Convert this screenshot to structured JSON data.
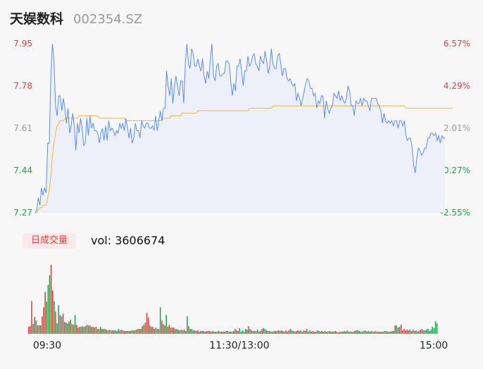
{
  "header": {
    "name": "天娱数科",
    "code": "002354.SZ"
  },
  "volume_panel": {
    "label": "日成交量",
    "vol_prefix": "vol: ",
    "vol_value": "3606674"
  },
  "colors": {
    "up": "#e23d3d",
    "down": "#1aa34a",
    "neutral": "#999999",
    "price_line": "#5b8def",
    "avg_line": "#f2b63a",
    "area_fill": "#eef0f8"
  },
  "chart_data": [
    {
      "type": "line",
      "title": "",
      "y_ticks_left": [
        "7.95",
        "7.78",
        "7.61",
        "7.44",
        "7.27"
      ],
      "y_ticks_right": [
        "6.57%",
        "4.29%",
        "2.01%",
        "-0.27%",
        "-2.55%"
      ],
      "ylim": [
        7.27,
        7.95
      ],
      "x_ticks": [
        "09:30",
        "11:30/13:00",
        "15:00"
      ],
      "series": [
        {
          "name": "",
          "values": [
            7.27,
            7.28,
            7.33,
            7.3,
            7.37,
            7.34,
            7.37,
            7.35,
            7.55,
            7.55,
            7.82,
            7.95,
            7.88,
            7.7,
            7.66,
            7.74,
            7.74,
            7.68,
            7.73,
            7.69,
            7.63,
            7.69,
            7.59,
            7.62,
            7.67,
            7.62,
            7.52,
            7.63,
            7.59,
            7.65,
            7.61,
            7.54,
            7.55,
            7.65,
            7.58,
            7.66,
            7.61,
            7.63,
            7.6,
            7.6,
            7.59,
            7.55,
            7.59,
            7.61,
            7.56,
            7.62,
            7.56,
            7.64,
            7.6,
            7.61,
            7.6,
            7.58,
            7.6,
            7.59,
            7.63,
            7.61,
            7.63,
            7.6,
            7.65,
            7.61,
            7.57,
            7.61,
            7.55,
            7.57,
            7.63,
            7.6,
            7.6,
            7.57,
            7.64,
            7.62,
            7.61,
            7.63,
            7.63,
            7.61,
            7.61,
            7.62,
            7.6,
            7.66,
            7.6,
            7.64,
            7.68,
            7.64,
            7.69,
            7.69,
            7.84,
            7.78,
            7.74,
            7.81,
            7.71,
            7.78,
            7.82,
            7.78,
            7.74,
            7.8,
            7.8,
            7.71,
            7.88,
            7.95,
            7.87,
            7.85,
            7.93,
            7.91,
            7.86,
            7.86,
            7.89,
            7.86,
            7.84,
            7.89,
            7.82,
            7.79,
            7.84,
            7.81,
            7.89,
            7.95,
            7.82,
            7.8,
            7.86,
            7.87,
            7.82,
            7.82,
            7.83,
            7.83,
            7.88,
            7.88,
            7.87,
            7.8,
            7.74,
            7.79,
            7.76,
            7.86,
            7.86,
            7.89,
            7.84,
            7.78,
            7.84,
            7.84,
            7.9,
            7.86,
            7.87,
            7.9,
            7.91,
            7.87,
            7.86,
            7.84,
            7.9,
            7.88,
            7.87,
            7.92,
            7.88,
            7.83,
            7.86,
            7.93,
            7.87,
            7.85,
            7.85,
            7.9,
            7.91,
            7.87,
            7.82,
            7.85,
            7.85,
            7.81,
            7.8,
            7.81,
            7.79,
            7.78,
            7.79,
            7.72,
            7.75,
            7.73,
            7.7,
            7.73,
            7.76,
            7.79,
            7.81,
            7.8,
            7.77,
            7.77,
            7.74,
            7.75,
            7.69,
            7.72,
            7.71,
            7.74,
            7.74,
            7.65,
            7.72,
            7.69,
            7.67,
            7.69,
            7.7,
            7.75,
            7.74,
            7.73,
            7.76,
            7.72,
            7.74,
            7.72,
            7.71,
            7.73,
            7.78,
            7.76,
            7.7,
            7.7,
            7.66,
            7.72,
            7.71,
            7.71,
            7.73,
            7.7,
            7.73,
            7.72,
            7.72,
            7.7,
            7.68,
            7.73,
            7.73,
            7.73,
            7.73,
            7.71,
            7.7,
            7.68,
            7.63,
            7.67,
            7.64,
            7.63,
            7.64,
            7.63,
            7.64,
            7.62,
            7.64,
            7.64,
            7.61,
            7.64,
            7.64,
            7.62,
            7.64,
            7.58,
            7.56,
            7.57,
            7.57,
            7.53,
            7.46,
            7.43,
            7.49,
            7.53,
            7.52,
            7.5,
            7.51,
            7.53,
            7.53,
            7.57,
            7.57,
            7.59,
            7.59,
            7.58,
            7.59,
            7.56,
            7.58,
            7.55,
            7.58,
            7.57,
            7.57
          ]
        },
        {
          "name": "",
          "values": [
            7.27,
            7.27,
            7.28,
            7.29,
            7.29,
            7.3,
            7.3,
            7.3,
            7.33,
            7.36,
            7.42,
            7.5,
            7.55,
            7.59,
            7.62,
            7.63,
            7.64,
            7.64,
            7.64,
            7.65,
            7.65,
            7.65,
            7.65,
            7.65,
            7.65,
            7.65,
            7.65,
            7.65,
            7.66,
            7.66,
            7.66,
            7.66,
            7.66,
            7.66,
            7.66,
            7.66,
            7.66,
            7.66,
            7.66,
            7.66,
            7.66,
            7.65,
            7.65,
            7.65,
            7.65,
            7.65,
            7.65,
            7.65,
            7.65,
            7.65,
            7.65,
            7.65,
            7.65,
            7.65,
            7.65,
            7.65,
            7.65,
            7.65,
            7.64,
            7.64,
            7.64,
            7.64,
            7.64,
            7.64,
            7.64,
            7.64,
            7.64,
            7.64,
            7.64,
            7.64,
            7.64,
            7.64,
            7.64,
            7.64,
            7.64,
            7.64,
            7.64,
            7.64,
            7.64,
            7.64,
            7.64,
            7.64,
            7.65,
            7.65,
            7.65,
            7.65,
            7.65,
            7.66,
            7.66,
            7.66,
            7.66,
            7.66,
            7.66,
            7.66,
            7.67,
            7.67,
            7.67,
            7.67,
            7.67,
            7.67,
            7.67,
            7.67,
            7.67,
            7.67,
            7.68,
            7.68,
            7.68,
            7.68,
            7.68,
            7.68,
            7.68,
            7.68,
            7.68,
            7.68,
            7.68,
            7.68,
            7.68,
            7.68,
            7.68,
            7.68,
            7.68,
            7.68,
            7.68,
            7.68,
            7.68,
            7.68,
            7.68,
            7.68,
            7.68,
            7.68,
            7.68,
            7.68,
            7.68,
            7.68,
            7.68,
            7.68,
            7.68,
            7.69,
            7.69,
            7.69,
            7.69,
            7.69,
            7.69,
            7.69,
            7.69,
            7.69,
            7.69,
            7.69,
            7.69,
            7.69,
            7.69,
            7.69,
            7.7,
            7.7,
            7.7,
            7.7,
            7.7,
            7.7,
            7.7,
            7.7,
            7.7,
            7.7,
            7.7,
            7.7,
            7.7,
            7.7,
            7.7,
            7.7,
            7.7,
            7.7,
            7.7,
            7.7,
            7.7,
            7.7,
            7.7,
            7.7,
            7.7,
            7.7,
            7.7,
            7.7,
            7.7,
            7.7,
            7.7,
            7.7,
            7.7,
            7.7,
            7.7,
            7.7,
            7.7,
            7.7,
            7.7,
            7.7,
            7.7,
            7.7,
            7.7,
            7.7,
            7.7,
            7.7,
            7.7,
            7.7,
            7.7,
            7.7,
            7.7,
            7.7,
            7.7,
            7.7,
            7.7,
            7.7,
            7.7,
            7.7,
            7.7,
            7.7,
            7.7,
            7.7,
            7.7,
            7.7,
            7.7,
            7.7,
            7.7,
            7.7,
            7.7,
            7.7,
            7.7,
            7.7,
            7.7,
            7.7,
            7.7,
            7.7,
            7.7,
            7.7,
            7.7,
            7.7,
            7.7,
            7.7,
            7.7,
            7.7,
            7.7,
            7.69,
            7.69,
            7.69,
            7.69,
            7.69,
            7.69,
            7.69,
            7.69,
            7.69,
            7.69,
            7.69,
            7.69,
            7.69,
            7.69,
            7.69,
            7.69,
            7.69,
            7.69,
            7.69,
            7.69,
            7.69,
            7.69,
            7.69,
            7.69,
            7.69,
            7.69,
            7.69,
            7.69,
            7.69,
            7.69,
            7.69
          ]
        }
      ]
    },
    {
      "type": "bar",
      "title": "",
      "values": [
        10,
        11,
        47,
        14,
        24,
        19,
        12,
        12,
        12,
        25,
        38,
        60,
        46,
        70,
        84,
        99,
        62,
        47,
        32,
        15,
        41,
        27,
        25,
        29,
        17,
        16,
        15,
        18,
        20,
        14,
        13,
        27,
        13,
        9,
        10,
        10,
        11,
        10,
        11,
        13,
        12,
        12,
        10,
        10,
        9,
        10,
        7,
        7,
        10,
        7,
        7,
        7,
        6,
        5,
        6,
        5,
        5,
        5,
        5,
        4,
        7,
        5,
        6,
        5,
        4,
        4,
        4,
        4,
        4,
        5,
        5,
        5,
        6,
        7,
        7,
        7,
        11,
        13,
        16,
        30,
        23,
        12,
        10,
        10,
        7,
        9,
        7,
        7,
        38,
        19,
        14,
        12,
        27,
        10,
        13,
        9,
        9,
        9,
        7,
        7,
        6,
        5,
        6,
        5,
        6,
        4,
        25,
        11,
        7,
        7,
        5,
        5,
        4,
        5,
        3,
        4,
        4,
        4,
        3,
        4,
        4,
        4,
        3,
        4,
        3,
        3,
        3,
        4,
        3,
        3,
        3,
        3,
        4,
        4,
        3,
        3,
        3,
        4,
        7,
        5,
        4,
        8,
        3,
        5,
        3,
        7,
        6,
        11,
        7,
        5,
        4,
        4,
        4,
        6,
        3,
        4,
        7,
        8,
        7,
        5,
        4,
        4,
        3,
        3,
        4,
        4,
        4,
        5,
        4,
        5,
        4,
        3,
        5,
        3,
        5,
        7,
        5,
        4,
        3,
        4,
        5,
        4,
        5,
        3,
        5,
        4,
        7,
        3,
        5,
        3,
        4,
        3,
        3,
        5,
        4,
        3,
        4,
        3,
        4,
        3,
        3,
        4,
        3,
        3,
        3,
        4,
        3,
        2,
        3,
        3,
        3,
        4,
        3,
        5,
        3,
        3,
        3,
        3,
        4,
        5,
        5,
        4,
        3,
        3,
        4,
        5,
        3,
        4,
        3,
        4,
        3,
        3,
        4,
        3,
        3,
        3,
        3,
        3,
        4,
        4,
        3,
        3,
        3,
        4,
        4,
        12,
        12,
        9,
        10,
        13,
        5,
        7,
        5,
        6,
        5,
        6,
        4,
        6,
        4,
        5,
        3,
        4,
        6,
        7,
        5,
        5,
        6,
        7,
        4,
        6,
        10,
        8,
        18,
        15
      ]
    }
  ]
}
